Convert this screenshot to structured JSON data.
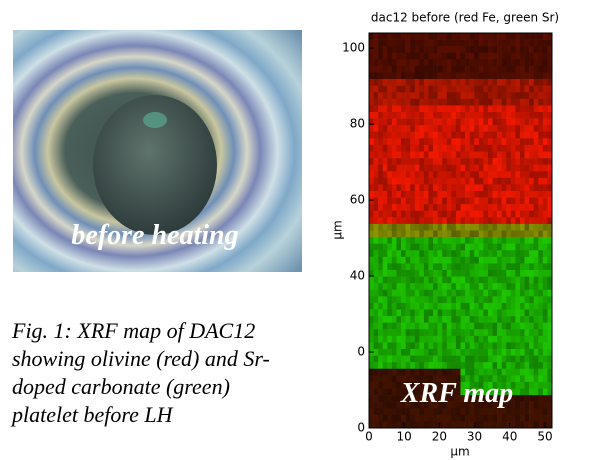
{
  "photo": {
    "label": "before heating"
  },
  "caption": [
    "Fig. 1: XRF map of DAC12",
    "showing olivine (red) and Sr-",
    "doped carbonate (green)",
    "platelet before LH"
  ],
  "chart_data": {
    "type": "heatmap",
    "title": "dac12 before (red Fe, green Sr)",
    "xlabel": "µm",
    "ylabel": "µm",
    "annotation": "XRF map",
    "xlim": [
      0,
      52
    ],
    "ylim": [
      0,
      104
    ],
    "xticks": [
      0,
      10,
      20,
      30,
      40,
      50
    ],
    "yticks": [
      0,
      {
        "value": 20,
        "label": "0"
      },
      40,
      60,
      80,
      100
    ]
  }
}
